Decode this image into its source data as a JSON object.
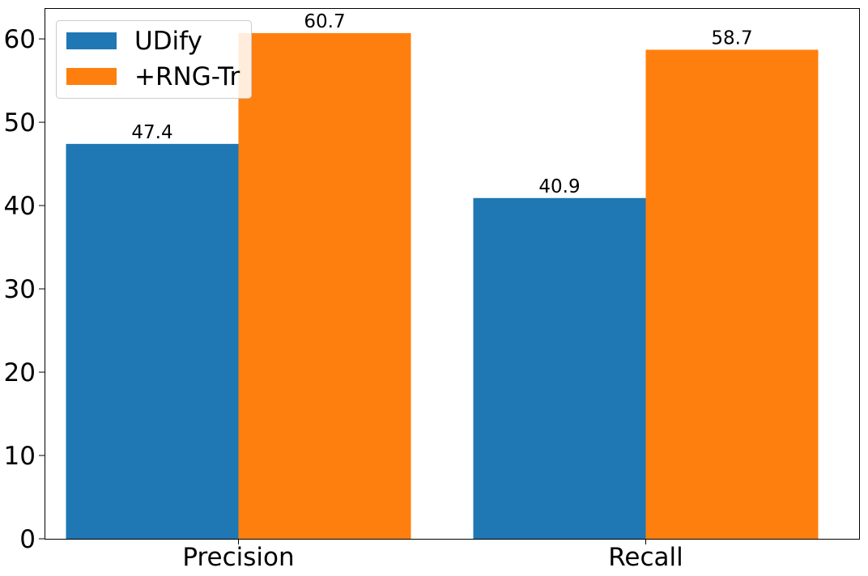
{
  "chart_data": {
    "type": "bar",
    "title": "",
    "xlabel": "",
    "ylabel": "",
    "categories": [
      "Precision",
      "Recall"
    ],
    "series": [
      {
        "name": "UDify",
        "values": [
          47.4,
          40.9
        ],
        "color": "#1f77b4"
      },
      {
        "name": "+RNG-Tr",
        "values": [
          60.7,
          58.7
        ],
        "color": "#ff7f0e"
      }
    ],
    "ylim": [
      0,
      63.7
    ],
    "yticks": [
      0,
      10,
      20,
      30,
      40,
      50,
      60
    ],
    "grid": false,
    "legend_position": "top-left",
    "show_data_labels": true
  }
}
